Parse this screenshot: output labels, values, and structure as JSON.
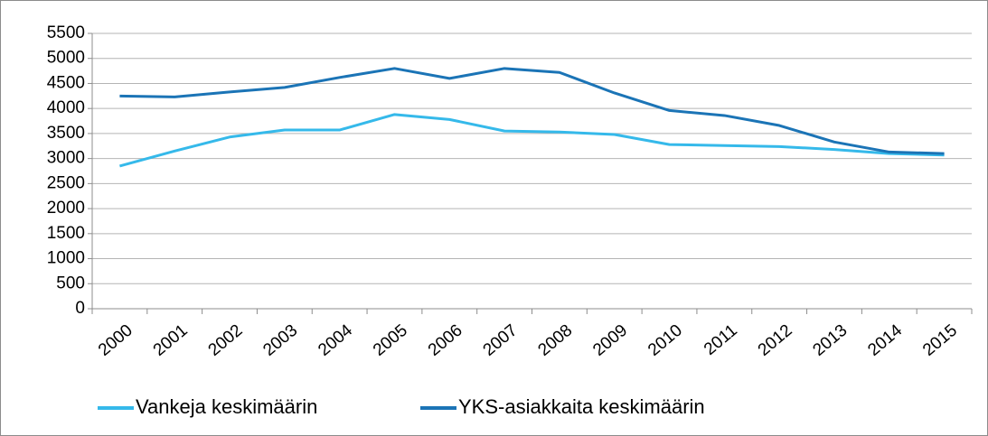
{
  "chart_data": {
    "type": "line",
    "categories": [
      "2000",
      "2001",
      "2002",
      "2003",
      "2004",
      "2005",
      "2006",
      "2007",
      "2008",
      "2009",
      "2010",
      "2011",
      "2012",
      "2013",
      "2014",
      "2015"
    ],
    "series": [
      {
        "name": "Vankeja keskimäärin",
        "color": "#35b9ea",
        "values": [
          2850,
          3150,
          3430,
          3570,
          3570,
          3880,
          3780,
          3550,
          3530,
          3480,
          3280,
          3260,
          3240,
          3180,
          3100,
          3070
        ]
      },
      {
        "name": "YKS-asiakkaita keskimäärin",
        "color": "#1b74b6",
        "values": [
          4250,
          4230,
          4330,
          4420,
          4620,
          4800,
          4600,
          4800,
          4720,
          4310,
          3960,
          3860,
          3660,
          3330,
          3130,
          3100
        ]
      }
    ],
    "ylim": [
      0,
      5500
    ],
    "yticks": [
      0,
      500,
      1000,
      1500,
      2000,
      2500,
      3000,
      3500,
      4000,
      4500,
      5000,
      5500
    ],
    "grid": true,
    "legend": "bottom"
  }
}
